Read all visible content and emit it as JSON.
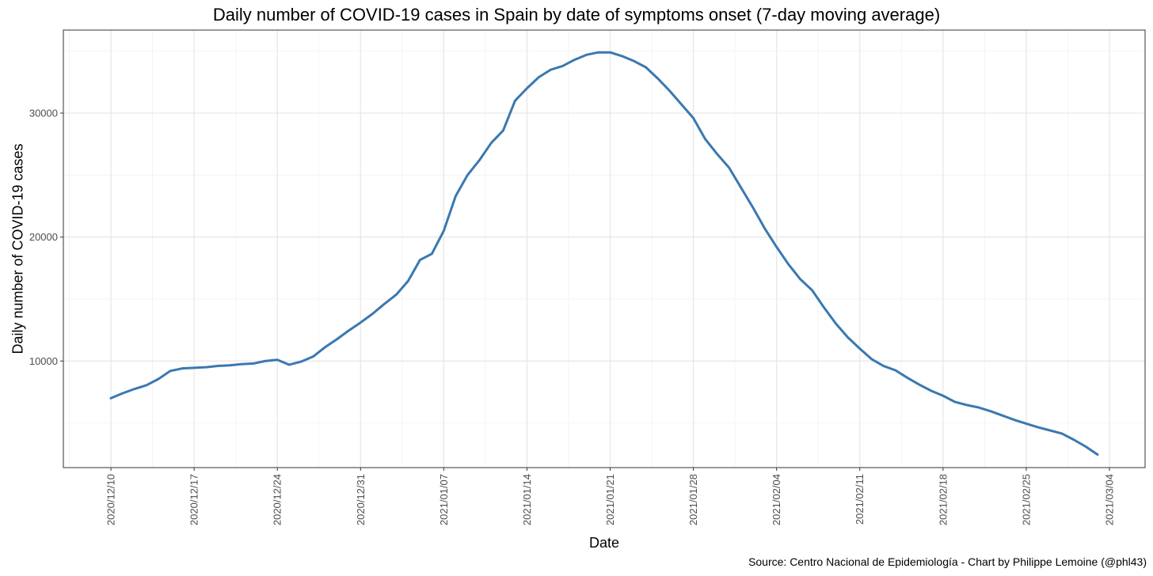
{
  "chart_data": {
    "type": "line",
    "title": "Daily number of COVID-19 cases in Spain by date of symptoms onset (7-day moving average)",
    "xlabel": "Date",
    "ylabel": "Daily number of COVID-19 cases",
    "source": "Source: Centro Nacional de Epidemiología - Chart by Philippe Lemoine (@phl43)",
    "grid": true,
    "x_ticks": [
      "2020/12/10",
      "2020/12/17",
      "2020/12/24",
      "2020/12/31",
      "2021/01/07",
      "2021/01/14",
      "2021/01/21",
      "2021/01/28",
      "2021/02/04",
      "2021/02/11",
      "2021/02/18",
      "2021/02/25",
      "2021/03/04"
    ],
    "y_ticks": [
      10000,
      20000,
      30000
    ],
    "xlim": [
      "2020/12/06",
      "2021/03/07"
    ],
    "ylim": [
      1400,
      36700
    ],
    "line_color": "#3a78b0",
    "series": [
      {
        "x": [
          "2020/12/10",
          "2020/12/11",
          "2020/12/12",
          "2020/12/13",
          "2020/12/14",
          "2020/12/15",
          "2020/12/16",
          "2020/12/17",
          "2020/12/18",
          "2020/12/19",
          "2020/12/20",
          "2020/12/21",
          "2020/12/22",
          "2020/12/23",
          "2020/12/24",
          "2020/12/25",
          "2020/12/26",
          "2020/12/27",
          "2020/12/28",
          "2020/12/29",
          "2020/12/30",
          "2020/12/31",
          "2021/01/01",
          "2021/01/02",
          "2021/01/03",
          "2021/01/04",
          "2021/01/05",
          "2021/01/06",
          "2021/01/07",
          "2021/01/08",
          "2021/01/09",
          "2021/01/10",
          "2021/01/11",
          "2021/01/12",
          "2021/01/13",
          "2021/01/14",
          "2021/01/15",
          "2021/01/16",
          "2021/01/17",
          "2021/01/18",
          "2021/01/19",
          "2021/01/20",
          "2021/01/21",
          "2021/01/22",
          "2021/01/23",
          "2021/01/24",
          "2021/01/25",
          "2021/01/26",
          "2021/01/27",
          "2021/01/28",
          "2021/01/29",
          "2021/01/30",
          "2021/01/31",
          "2021/02/01",
          "2021/02/02",
          "2021/02/03",
          "2021/02/04",
          "2021/02/05",
          "2021/02/06",
          "2021/02/07",
          "2021/02/08",
          "2021/02/09",
          "2021/02/10",
          "2021/02/11",
          "2021/02/12",
          "2021/02/13",
          "2021/02/14",
          "2021/02/15",
          "2021/02/16",
          "2021/02/17",
          "2021/02/18",
          "2021/02/19",
          "2021/02/20",
          "2021/02/21",
          "2021/02/22",
          "2021/02/23",
          "2021/02/24",
          "2021/02/25",
          "2021/02/26",
          "2021/02/27",
          "2021/02/28",
          "2021/03/01",
          "2021/03/02",
          "2021/03/03"
        ],
        "values": [
          7000,
          7400,
          7750,
          8050,
          8550,
          9200,
          9400,
          9450,
          9500,
          9600,
          9650,
          9750,
          9800,
          10000,
          10100,
          9700,
          9950,
          10350,
          11100,
          11750,
          12450,
          13100,
          13800,
          14600,
          15350,
          16450,
          18150,
          18650,
          20500,
          23300,
          25000,
          26200,
          27600,
          28600,
          31000,
          32000,
          32900,
          33500,
          33800,
          34300,
          34700,
          34900,
          34900,
          34600,
          34200,
          33700,
          32800,
          31800,
          30700,
          29600,
          27900,
          26700,
          25600,
          24000,
          22400,
          20700,
          19200,
          17800,
          16600,
          15700,
          14300,
          13000,
          11900,
          11000,
          10150,
          9600,
          9250,
          8650,
          8100,
          7600,
          7200,
          6700,
          6450,
          6250,
          5950,
          5600,
          5250,
          4950,
          4650,
          4400,
          4150,
          3650,
          3100,
          2450
        ]
      }
    ]
  }
}
